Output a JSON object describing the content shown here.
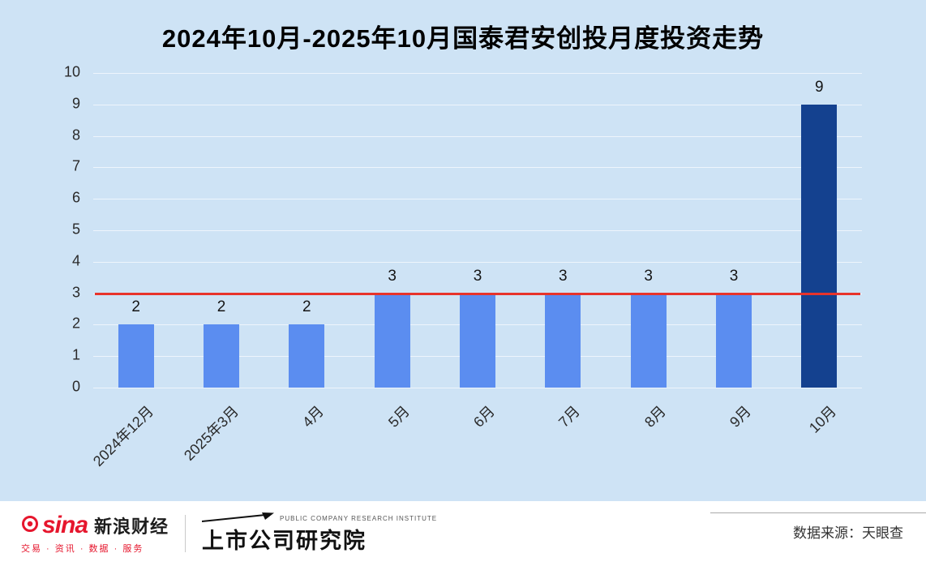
{
  "page": {
    "background": "#cee3f5"
  },
  "chart_data": {
    "type": "bar",
    "title": "2024年10月-2025年10月国泰君安创投月度投资走势",
    "categories": [
      "2024年12月",
      "2025年3月",
      "4月",
      "5月",
      "6月",
      "7月",
      "8月",
      "9月",
      "10月"
    ],
    "values": [
      2,
      2,
      2,
      3,
      3,
      3,
      3,
      3,
      9
    ],
    "ylim": [
      0,
      10
    ],
    "yticks": [
      0,
      1,
      2,
      3,
      4,
      5,
      6,
      7,
      8,
      9,
      10
    ],
    "xlabel": "",
    "ylabel": "",
    "grid": true,
    "legend": "none",
    "bar_color": "#5b8df0",
    "highlight_index": 8,
    "highlight_color": "#14418f",
    "reference_line": {
      "value": 3,
      "color": "#e8332b"
    }
  },
  "footer": {
    "sina_logo_text": "sina",
    "sina_brand": "新浪财经",
    "sina_tagline": "交易 · 资讯 · 数据 · 服务",
    "institute_name": "上市公司研究院",
    "institute_subtitle": "PUBLIC COMPANY RESEARCH INSTITUTE",
    "source": "数据来源：天眼查"
  }
}
